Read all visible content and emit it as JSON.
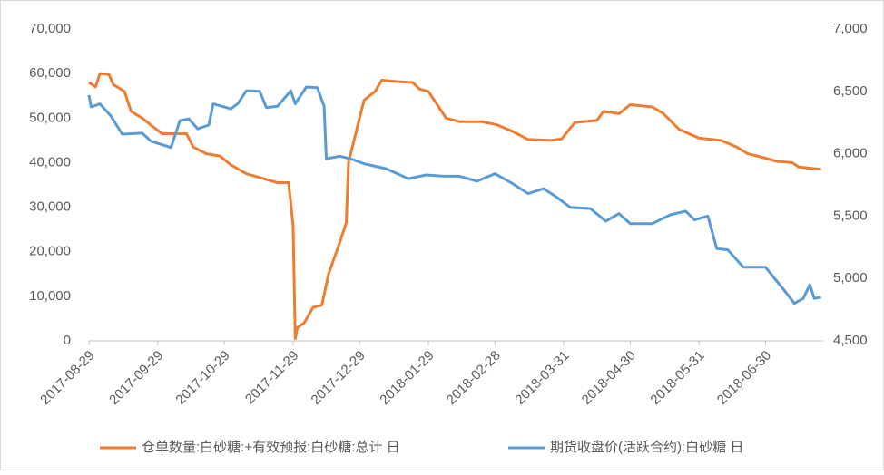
{
  "chart_data": {
    "type": "line",
    "xlim": [
      "2017-08-29",
      "2018-07-26"
    ],
    "xticks": [
      "2017-08-29",
      "2017-09-29",
      "2017-10-29",
      "2017-11-29",
      "2017-12-29",
      "2018-01-29",
      "2018-02-28",
      "2018-03-31",
      "2018-04-30",
      "2018-05-31",
      "2018-06-30"
    ],
    "ylim": [
      0,
      70000
    ],
    "yticks": [
      0,
      {
        "value": 10000,
        "label": "10,000"
      },
      {
        "value": 20000,
        "label": "20,000"
      },
      {
        "value": 30000,
        "label": "30,000"
      },
      {
        "value": 40000,
        "label": "40,000"
      },
      {
        "value": 50000,
        "label": "50,000"
      },
      {
        "value": 60000,
        "label": "60,000"
      },
      {
        "value": 70000,
        "label": "70,000"
      }
    ],
    "y2lim": [
      4500,
      7000
    ],
    "y2ticks": [
      {
        "value": 4500,
        "label": "4,500"
      },
      {
        "value": 5000,
        "label": "5,000"
      },
      {
        "value": 5500,
        "label": "5,500"
      },
      {
        "value": 6000,
        "label": "6,000"
      },
      {
        "value": 6500,
        "label": "6,500"
      },
      {
        "value": 7000,
        "label": "7,000"
      }
    ],
    "grid": false,
    "legend": "bottom",
    "series": [
      {
        "name": "仓单数量:白砂糖:+有效预报:白砂糖:总计 日",
        "color": "#ed7d31",
        "x": [
          "2017-08-29",
          "2017-09-01",
          "2017-09-03",
          "2017-09-07",
          "2017-09-09",
          "2017-09-14",
          "2017-09-17",
          "2017-09-22",
          "2017-09-27",
          "2017-10-01",
          "2017-10-12",
          "2017-10-15",
          "2017-10-21",
          "2017-10-27",
          "2017-11-01",
          "2017-11-08",
          "2017-11-15",
          "2017-11-22",
          "2017-11-27",
          "2017-11-29",
          "2017-11-30",
          "2017-12-01",
          "2017-12-04",
          "2017-12-08",
          "2017-12-12",
          "2017-12-15",
          "2017-12-20",
          "2017-12-23",
          "2017-12-24",
          "2017-12-28",
          "2017-12-31",
          "2018-01-05",
          "2018-01-08",
          "2018-01-15",
          "2018-01-22",
          "2018-01-25",
          "2018-01-29",
          "2018-02-02",
          "2018-02-06",
          "2018-02-12",
          "2018-02-22",
          "2018-03-01",
          "2018-03-08",
          "2018-03-15",
          "2018-03-25",
          "2018-03-30",
          "2018-04-05",
          "2018-04-15",
          "2018-04-18",
          "2018-04-25",
          "2018-04-30",
          "2018-05-10",
          "2018-05-15",
          "2018-05-22",
          "2018-05-31",
          "2018-06-10",
          "2018-06-17",
          "2018-06-22",
          "2018-06-30",
          "2018-07-05",
          "2018-07-12",
          "2018-07-15",
          "2018-07-25"
        ],
        "values": [
          58000,
          57000,
          60000,
          59800,
          57500,
          56000,
          51500,
          50000,
          48000,
          46500,
          46500,
          43500,
          42000,
          41500,
          39500,
          37500,
          36500,
          35500,
          35500,
          26000,
          500,
          3000,
          4000,
          7500,
          8000,
          15000,
          22000,
          26500,
          40000,
          48000,
          54000,
          56000,
          58500,
          58200,
          58000,
          56500,
          56000,
          53000,
          50000,
          49200,
          49200,
          48500,
          47000,
          45200,
          45000,
          45300,
          49000,
          49500,
          51500,
          51000,
          53000,
          52500,
          51000,
          47500,
          45500,
          45000,
          43500,
          42000,
          41000,
          40300,
          40000,
          39000,
          38500
        ]
      },
      {
        "name": "期货收盘价(活跃合约):白砂糖 日",
        "color": "#5b9bd5",
        "axis": "y2",
        "x": [
          "2017-08-29",
          "2017-08-30",
          "2017-09-03",
          "2017-09-08",
          "2017-09-13",
          "2017-09-22",
          "2017-09-26",
          "2017-10-05",
          "2017-10-09",
          "2017-10-13",
          "2017-10-17",
          "2017-10-22",
          "2017-10-24",
          "2017-11-01",
          "2017-11-04",
          "2017-11-08",
          "2017-11-14",
          "2017-11-17",
          "2017-11-22",
          "2017-11-28",
          "2017-11-30",
          "2017-12-05",
          "2017-12-10",
          "2017-12-13",
          "2017-12-14",
          "2017-12-20",
          "2017-12-25",
          "2017-12-31",
          "2018-01-10",
          "2018-01-20",
          "2018-01-28",
          "2018-02-05",
          "2018-02-12",
          "2018-02-20",
          "2018-02-28",
          "2018-03-08",
          "2018-03-15",
          "2018-03-22",
          "2018-03-28",
          "2018-04-03",
          "2018-04-12",
          "2018-04-19",
          "2018-04-25",
          "2018-04-30",
          "2018-05-10",
          "2018-05-18",
          "2018-05-25",
          "2018-05-29",
          "2018-06-04",
          "2018-06-08",
          "2018-06-13",
          "2018-06-20",
          "2018-06-30",
          "2018-07-05",
          "2018-07-10",
          "2018-07-13",
          "2018-07-17",
          "2018-07-20",
          "2018-07-22",
          "2018-07-25"
        ],
        "values": [
          6470,
          6375,
          6400,
          6300,
          6157,
          6165,
          6100,
          6050,
          6265,
          6280,
          6200,
          6230,
          6400,
          6360,
          6400,
          6505,
          6500,
          6370,
          6380,
          6505,
          6400,
          6535,
          6530,
          6380,
          5960,
          5980,
          5960,
          5920,
          5880,
          5800,
          5830,
          5820,
          5820,
          5780,
          5840,
          5760,
          5680,
          5720,
          5650,
          5570,
          5560,
          5460,
          5520,
          5440,
          5440,
          5510,
          5540,
          5470,
          5500,
          5240,
          5230,
          5090,
          5090,
          4980,
          4870,
          4800,
          4840,
          4950,
          4840,
          4850
        ]
      }
    ]
  }
}
